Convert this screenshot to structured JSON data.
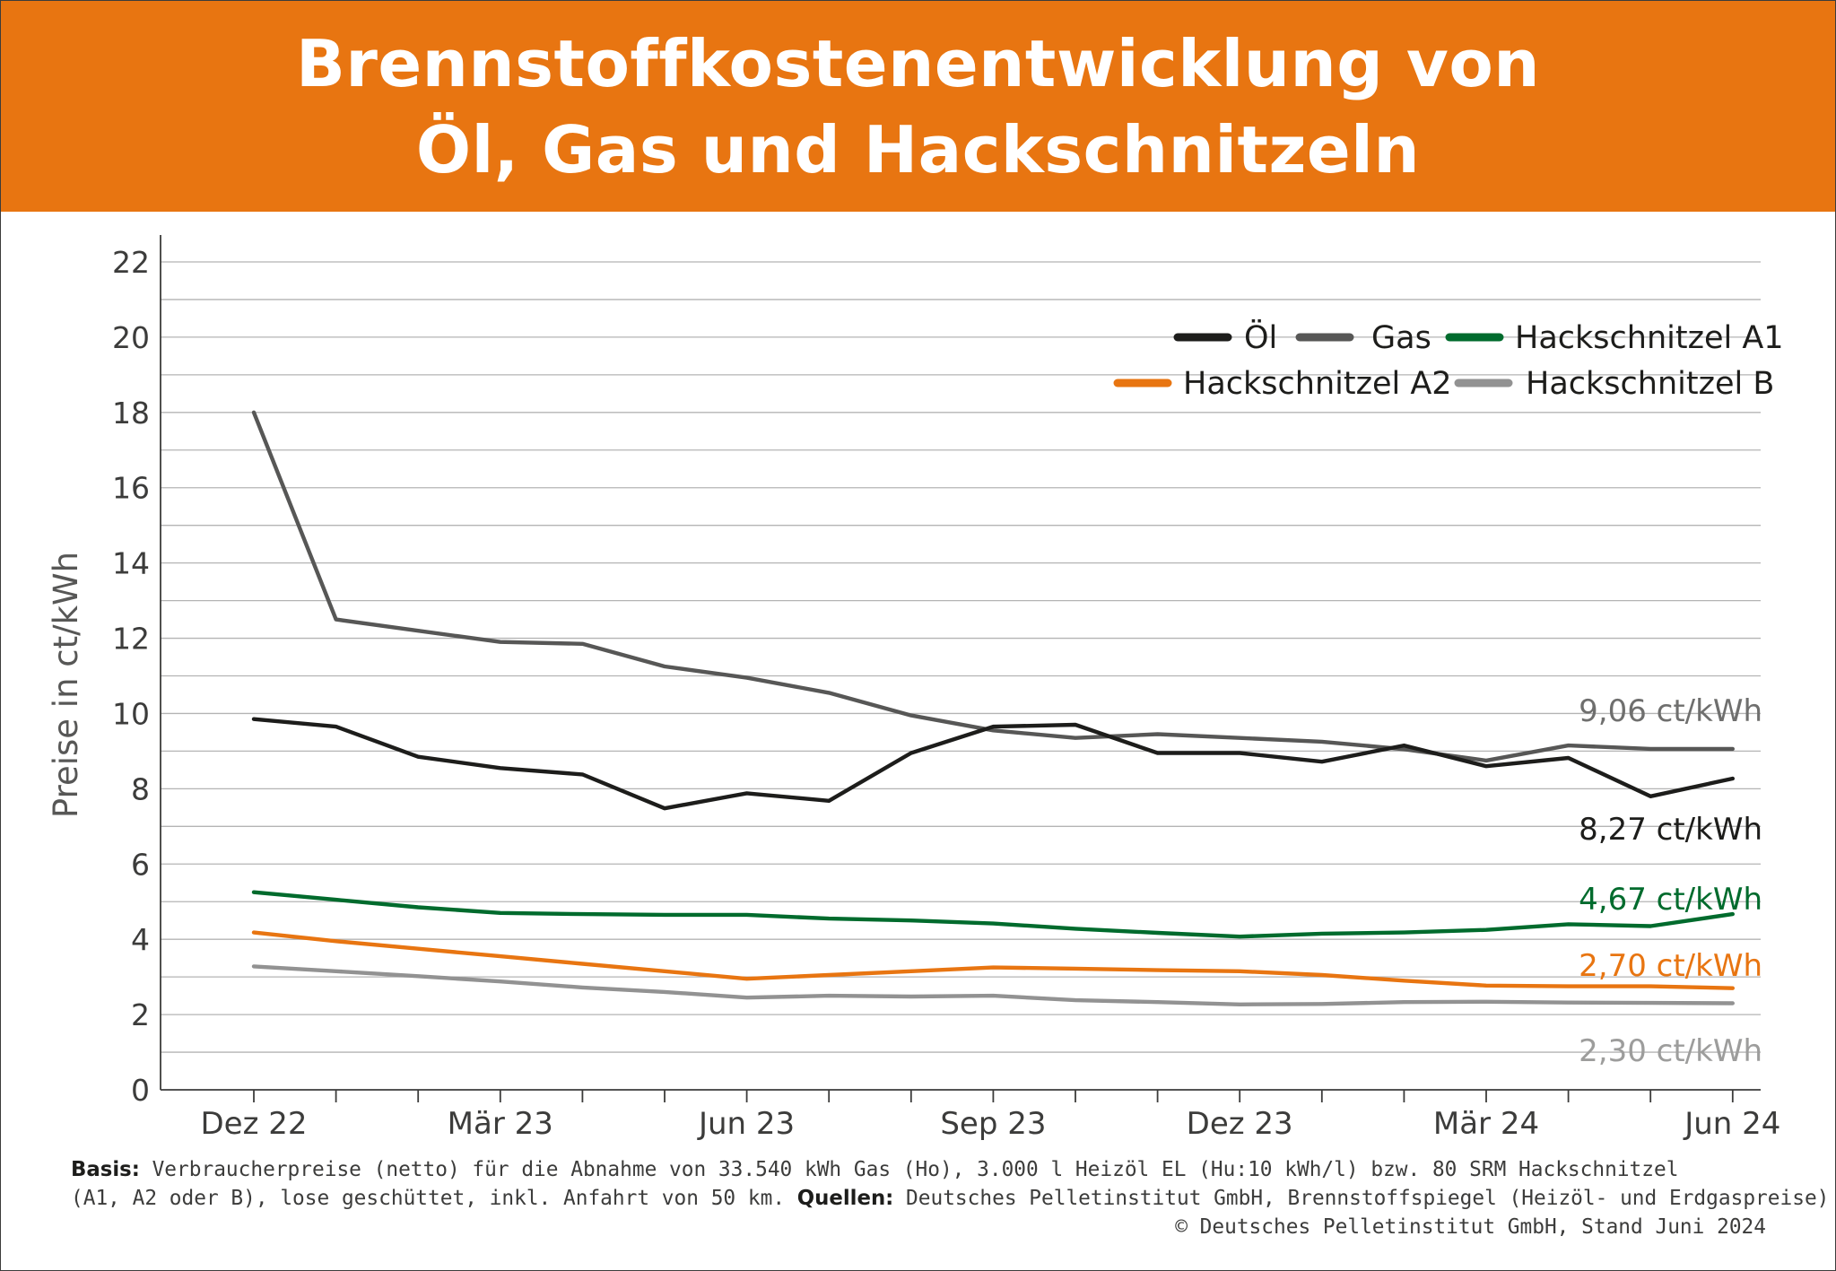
{
  "header": {
    "title_line1": "Brennstoffkostenentwicklung von",
    "title_line2": "Öl, Gas und Hackschnitzeln"
  },
  "footer": {
    "basis_label": "Basis:",
    "basis_text": " Verbraucherpreise (netto) für die Abnahme von 33.540 kWh Gas (Ho), 3.000 l Heizöl EL (Hu:10 kWh/l) bzw. 80 SRM Hackschnitzel",
    "basis_text2": "(A1, A2 oder B), lose geschüttet, inkl. Anfahrt von 50 km. ",
    "sources_label": "Quellen:",
    "sources_text": " Deutsches Pelletinstitut GmbH, Brennstoffspiegel (Heizöl- und Erdgaspreise)",
    "copyright": "© Deutsches Pelletinstitut GmbH, Stand Juni 2024"
  },
  "chart_data": {
    "type": "line",
    "title": "Brennstoffkostenentwicklung von Öl, Gas und Hackschnitzeln",
    "xlabel": "",
    "ylabel": "Preise in ct/kWh",
    "ylim": [
      0,
      22
    ],
    "yticks": [
      0,
      2,
      4,
      6,
      8,
      10,
      12,
      14,
      16,
      18,
      20,
      22
    ],
    "grid": true,
    "legend_position": "top-right",
    "x": [
      "Dez 22",
      "Jan 23",
      "Feb 23",
      "Mär 23",
      "Apr 23",
      "Mai 23",
      "Jun 23",
      "Jul 23",
      "Aug 23",
      "Sep 23",
      "Okt 23",
      "Nov 23",
      "Dez 23",
      "Jan 24",
      "Feb 24",
      "Mär 24",
      "Apr 24",
      "Mai 24",
      "Jun 24"
    ],
    "xtick_labels": [
      "Dez 22",
      "",
      "",
      "Mär 23",
      "",
      "",
      "Jun 23",
      "",
      "",
      "Sep 23",
      "",
      "",
      "Dez 23",
      "",
      "",
      "Mär 24",
      "",
      "",
      "Jun 24"
    ],
    "series": [
      {
        "name": "Öl",
        "color": "#1d1d1b",
        "values": [
          9.85,
          9.65,
          8.85,
          8.55,
          8.38,
          7.48,
          7.88,
          7.68,
          8.95,
          9.65,
          9.7,
          8.95,
          8.95,
          8.72,
          9.15,
          8.6,
          8.82,
          7.8,
          8.27
        ],
        "end_label": "8,27 ct/kWh"
      },
      {
        "name": "Gas",
        "color": "#575756",
        "values": [
          18.0,
          12.5,
          12.2,
          11.9,
          11.85,
          11.25,
          10.95,
          10.55,
          9.95,
          9.55,
          9.35,
          9.45,
          9.35,
          9.25,
          9.05,
          8.75,
          9.15,
          9.06,
          9.06
        ],
        "end_label": "9,06 ct/kWh"
      },
      {
        "name": "Hackschnitzel A1",
        "color": "#006b2d",
        "values": [
          5.25,
          5.05,
          4.85,
          4.7,
          4.67,
          4.65,
          4.65,
          4.55,
          4.5,
          4.42,
          4.28,
          4.17,
          4.07,
          4.15,
          4.18,
          4.25,
          4.4,
          4.35,
          4.67
        ],
        "end_label": "4,67 ct/kWh"
      },
      {
        "name": "Hackschnitzel A2",
        "color": "#e87511",
        "values": [
          4.18,
          3.95,
          3.75,
          3.55,
          3.35,
          3.15,
          2.95,
          3.05,
          3.15,
          3.25,
          3.22,
          3.18,
          3.15,
          3.05,
          2.9,
          2.77,
          2.75,
          2.75,
          2.7
        ],
        "end_label": "2,70 ct/kWh"
      },
      {
        "name": "Hackschnitzel B",
        "color": "#929292",
        "values": [
          3.28,
          3.15,
          3.02,
          2.88,
          2.72,
          2.6,
          2.45,
          2.5,
          2.48,
          2.5,
          2.38,
          2.33,
          2.27,
          2.28,
          2.33,
          2.34,
          2.32,
          2.31,
          2.3
        ],
        "end_label": "2,30 ct/kWh"
      }
    ]
  }
}
